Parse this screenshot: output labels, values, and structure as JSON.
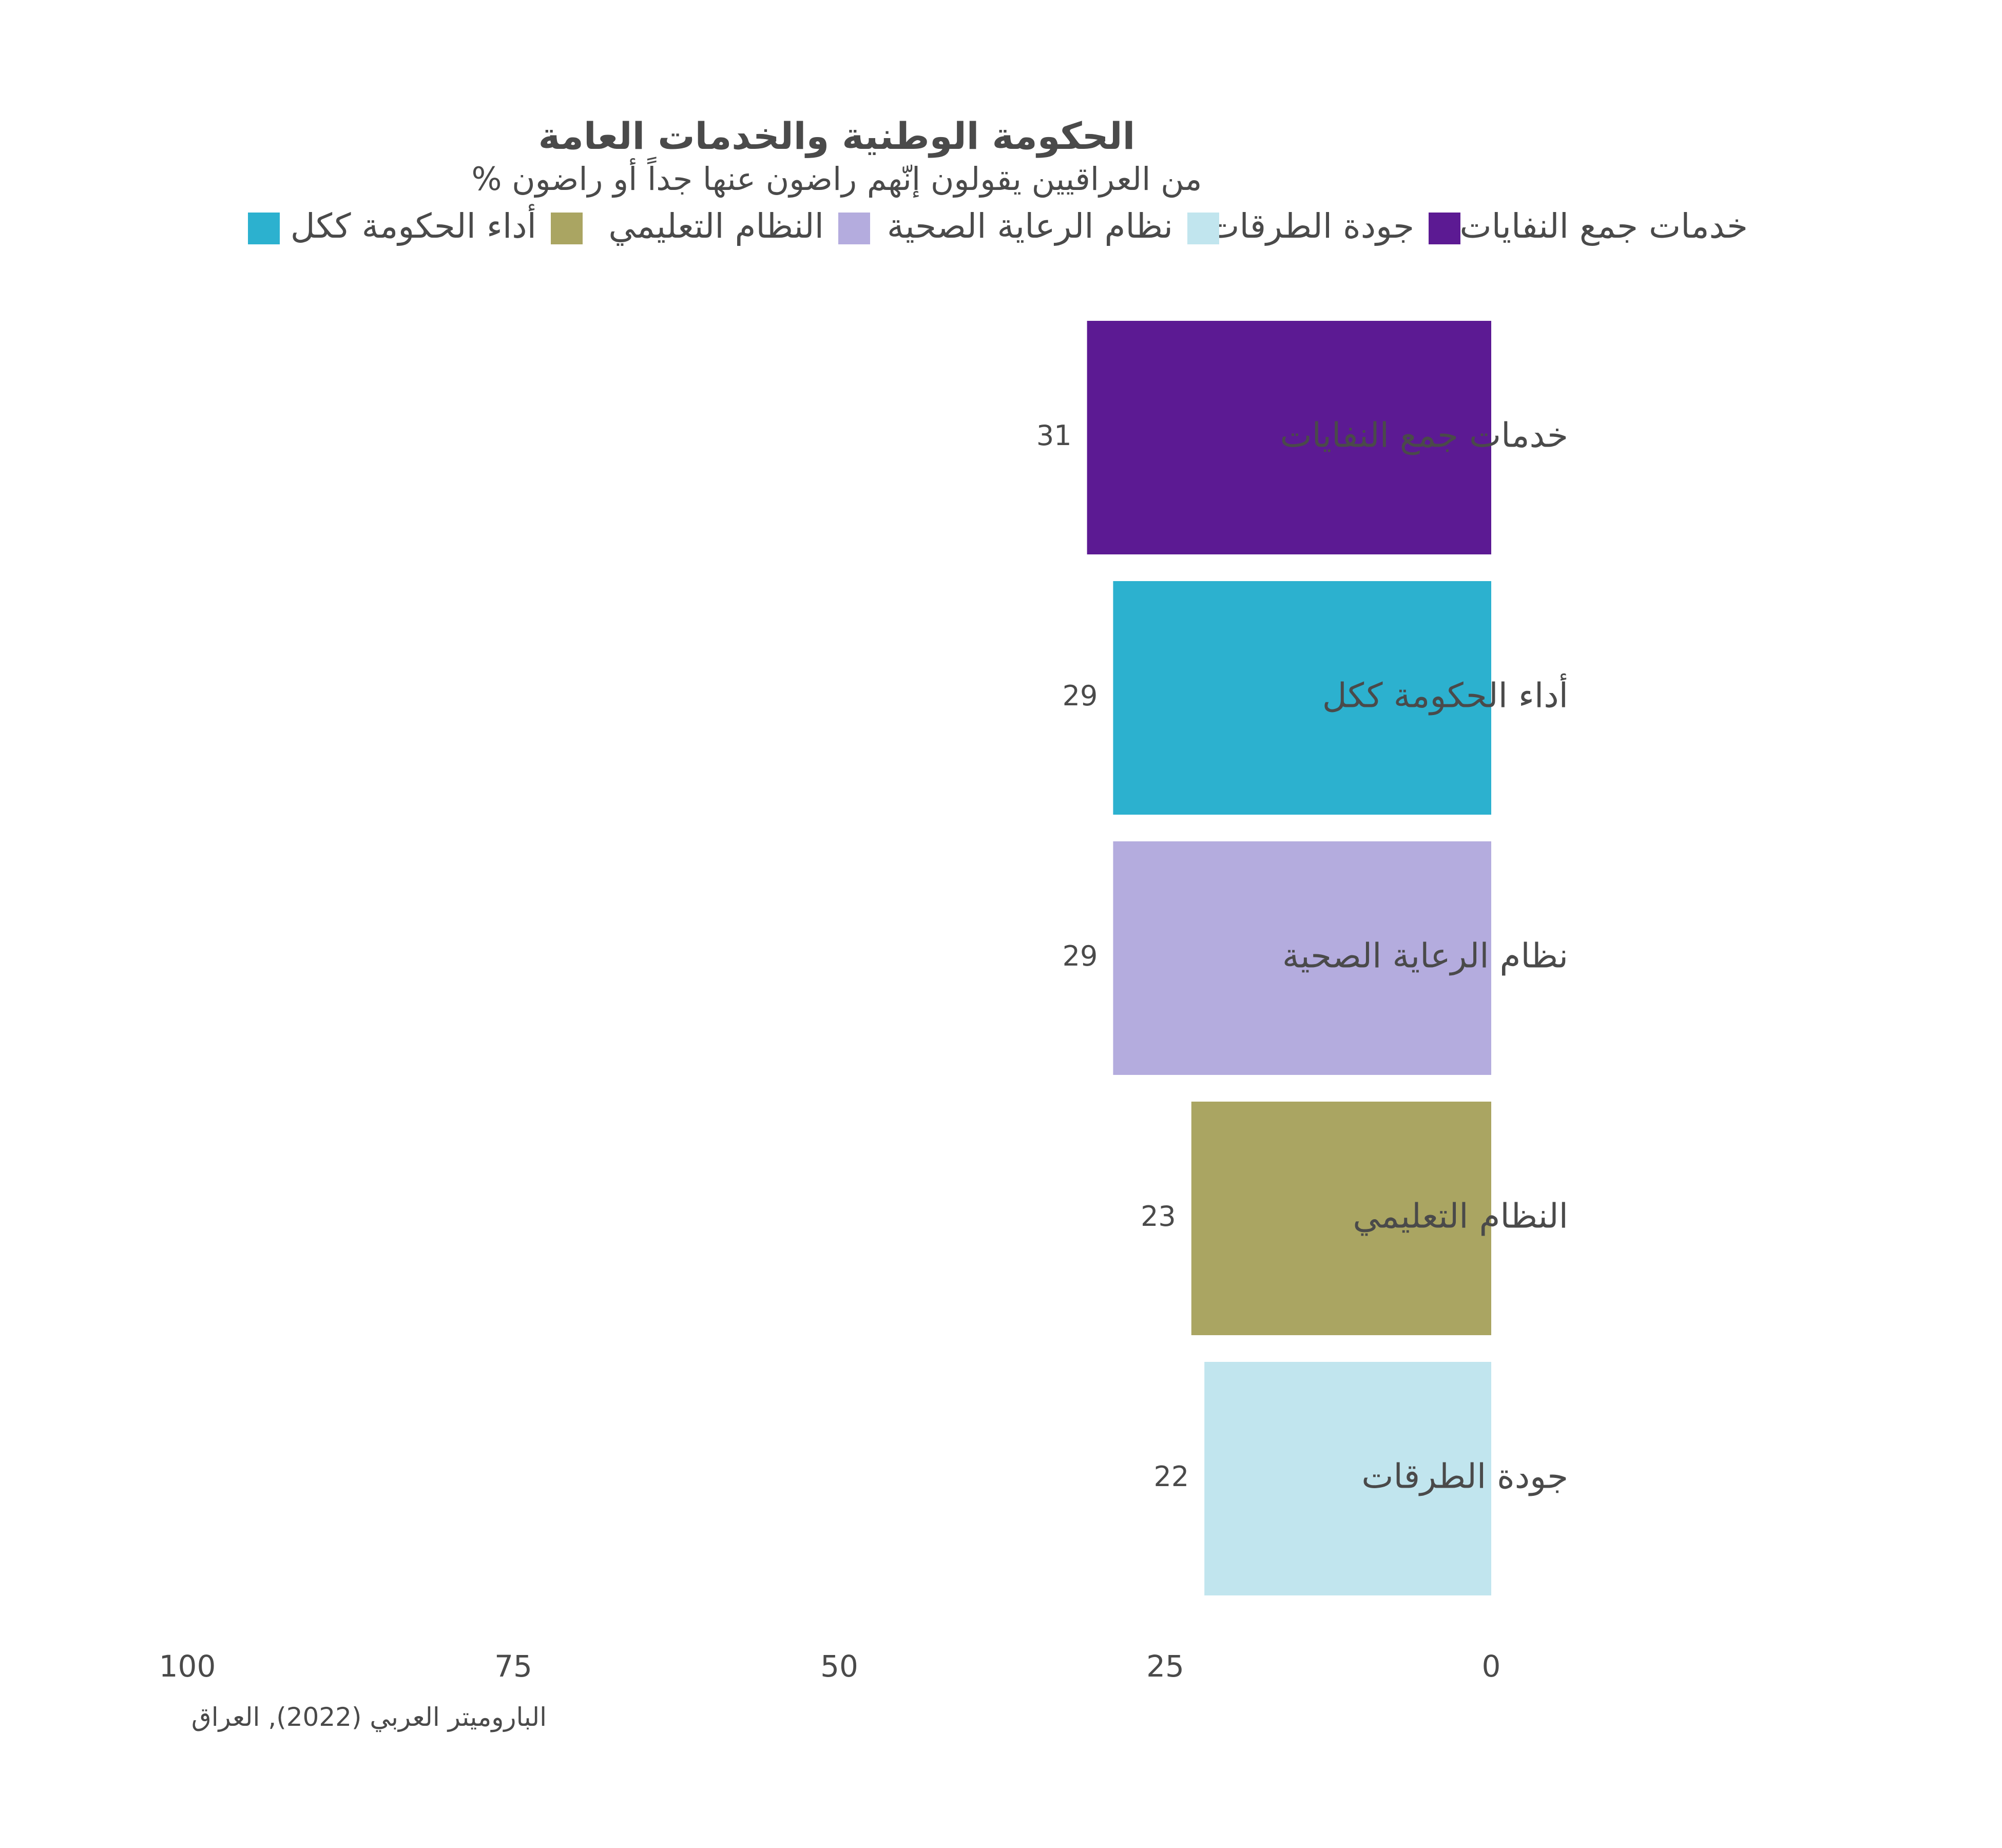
{
  "chart_data": {
    "type": "bar",
    "orientation": "horizontal",
    "direction": "right-to-left",
    "title": "الحكومة الوطنية والخدمات العامة",
    "subtitle": "% من العراقيين يقولون إنّهم راضون عنها جداً أو راضون",
    "categories": [
      "خدمات جمع النفايات",
      "أداء الحكومة ككل",
      "نظام الرعاية الصحية",
      "النظام التعليمي",
      "جودة الطرقات"
    ],
    "values": [
      31,
      29,
      29,
      23,
      22
    ],
    "colors": [
      "#5c1a93",
      "#2cb1cf",
      "#b4acde",
      "#aaa562",
      "#c1e5ee"
    ],
    "legend": [
      {
        "label": "خدمات جمع النفايات",
        "color": "#5c1a93"
      },
      {
        "label": "جودة الطرقات",
        "color": "#c1e5ee"
      },
      {
        "label": "نظام الرعاية الصحية",
        "color": "#b4acde"
      },
      {
        "label": "النظام التعليمي",
        "color": "#aaa562"
      },
      {
        "label": "أداء الحكومة ككل",
        "color": "#2cb1cf"
      }
    ],
    "legend_position": "top",
    "xlim": [
      0,
      100
    ],
    "x_ticks": [
      {
        "value": 0,
        "label": "0"
      },
      {
        "value": 25,
        "label": "25"
      },
      {
        "value": 50,
        "label": "50"
      },
      {
        "value": 75,
        "label": "75"
      },
      {
        "value": 100,
        "label": "100"
      }
    ],
    "grid": false,
    "caption": "الباروميتر العربي (2022), العراق"
  }
}
